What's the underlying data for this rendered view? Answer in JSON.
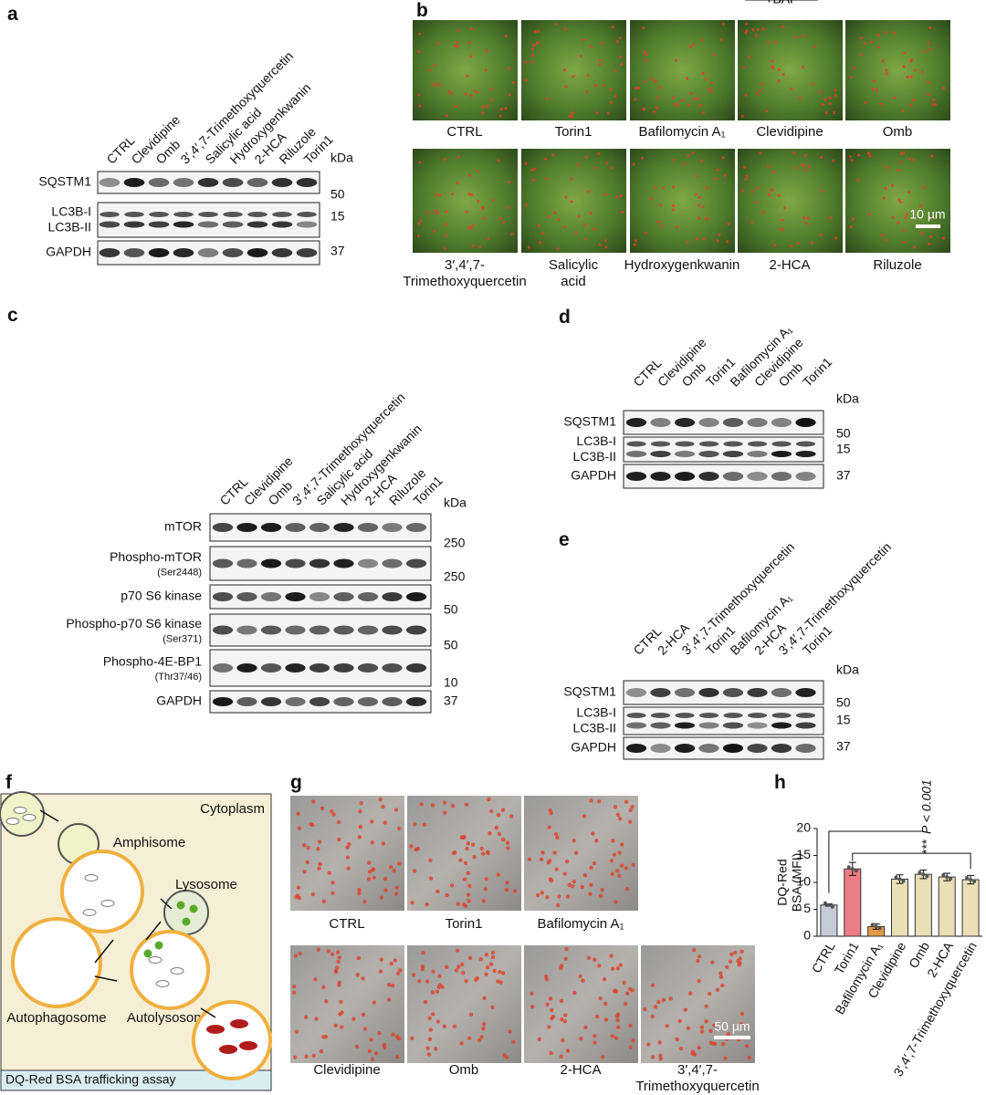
{
  "panels": {
    "a": {
      "label": "a",
      "kda": "kDa",
      "lanes": [
        "CTRL",
        "Clevidipine",
        "Omb",
        "3′,4′,7-Trimethoxyquercetin",
        "Salicylic acid",
        "Hydroxygenkwanin",
        "2-HCA",
        "Riluzole",
        "Torin1"
      ],
      "rows": [
        {
          "names": [
            "SQSTM1"
          ],
          "marker": "50"
        },
        {
          "names": [
            "LC3B-I",
            "LC3B-II"
          ],
          "marker": "15"
        },
        {
          "names": [
            "GAPDH"
          ],
          "marker": "37"
        }
      ]
    },
    "b": {
      "label": "b",
      "captions": [
        [
          "CTRL"
        ],
        [
          "Torin1"
        ],
        [
          "Bafilomycin A₁"
        ],
        [
          "Clevidipine"
        ],
        [
          "Omb"
        ],
        [
          "3′,4′,7-",
          "Trimethoxyquercetin"
        ],
        [
          "Salicylic",
          "acid"
        ],
        [
          "Hydroxygenkwanin"
        ],
        [
          "2-HCA"
        ],
        [
          "Riluzole"
        ]
      ],
      "scale": "10 µm"
    },
    "c": {
      "label": "c",
      "kda": "kDa",
      "lanes": [
        "CTRL",
        "Clevidipine",
        "Omb",
        "3′,4′,7-Trimethoxyquercetin",
        "Salicylic acid",
        "Hydroxygenkwanin",
        "2-HCA",
        "Riluzole",
        "Torin1"
      ],
      "rows": [
        {
          "names": [
            "mTOR"
          ],
          "marker": "250"
        },
        {
          "names": [
            "Phospho-mTOR"
          ],
          "sub": "(Ser2448)",
          "marker": "250"
        },
        {
          "names": [
            "p70 S6 kinase"
          ],
          "marker": "50"
        },
        {
          "names": [
            "Phospho-p70 S6 kinase"
          ],
          "sub": "(Ser371)",
          "marker": "50"
        },
        {
          "names": [
            "Phospho-4E-BP1"
          ],
          "sub": "(Thr37/46)",
          "marker": "10"
        },
        {
          "names": [
            "GAPDH"
          ],
          "marker": "37"
        }
      ]
    },
    "d": {
      "label": "d",
      "kda": "kDa",
      "treatment": "+BAF",
      "lanes": [
        "CTRL",
        "Clevidipine",
        "Omb",
        "Torin1",
        "Bafilomycin A₁",
        "Clevidipine",
        "Omb",
        "Torin1"
      ],
      "rows": [
        {
          "names": [
            "SQSTM1"
          ],
          "marker": "50"
        },
        {
          "names": [
            "LC3B-I",
            "LC3B-II"
          ],
          "marker": "15"
        },
        {
          "names": [
            "GAPDH"
          ],
          "marker": "37"
        }
      ]
    },
    "e": {
      "label": "e",
      "kda": "kDa",
      "treatment": "+BAF",
      "lanes": [
        "CTRL",
        "2-HCA",
        "3′,4′,7-Trimethoxyquercetin",
        "Torin1",
        "Bafilomycin A₁",
        "2-HCA",
        "3′,4′,7-Trimethoxyquercetin",
        "Torin1"
      ],
      "rows": [
        {
          "names": [
            "SQSTM1"
          ],
          "marker": "50"
        },
        {
          "names": [
            "LC3B-I",
            "LC3B-II"
          ],
          "marker": "15"
        },
        {
          "names": [
            "GAPDH"
          ],
          "marker": "37"
        }
      ]
    },
    "f": {
      "label": "f",
      "cytoplasm": "Cytoplasm",
      "amphisome": "Amphisome",
      "lysosome": "Lysosome",
      "autophagosome": "Autophagosome",
      "autolysosome": "Autolysosome",
      "footer": "DQ-Red BSA trafficking assay"
    },
    "g": {
      "label": "g",
      "captions": [
        [
          "CTRL"
        ],
        [
          "Torin1"
        ],
        [
          "Bafilomycin A₁"
        ],
        [
          "Clevidipine"
        ],
        [
          "Omb"
        ],
        [
          "2-HCA"
        ],
        [
          "3′,4′,7-",
          "Trimethoxyquercetin"
        ]
      ],
      "scale": "50 µm"
    },
    "h": {
      "label": "h",
      "type": "bar",
      "ylabel": [
        "DQ-Red",
        "BSA (MFI)"
      ],
      "categories": [
        "CTRL",
        "Torin1",
        "Bafilomycin A₁",
        "Clevidipine",
        "Omb",
        "2-HCA",
        "3′,4′,7-Trimethoxyquercetin"
      ],
      "values": [
        5.8,
        12.5,
        1.8,
        10.6,
        11.5,
        11.0,
        10.5
      ],
      "errors": [
        0.2,
        1.2,
        0.5,
        0.8,
        0.8,
        0.7,
        0.8
      ],
      "colors": [
        "#c3ccd6",
        "#ec7d86",
        "#e39a48",
        "#eadfb6",
        "#eadfb6",
        "#eadfb6",
        "#eadfb6"
      ],
      "ylim": [
        0,
        20
      ],
      "yticks": [
        0,
        5,
        10,
        15,
        20
      ],
      "significance": "***",
      "pvalue": "P < 0.001"
    }
  }
}
